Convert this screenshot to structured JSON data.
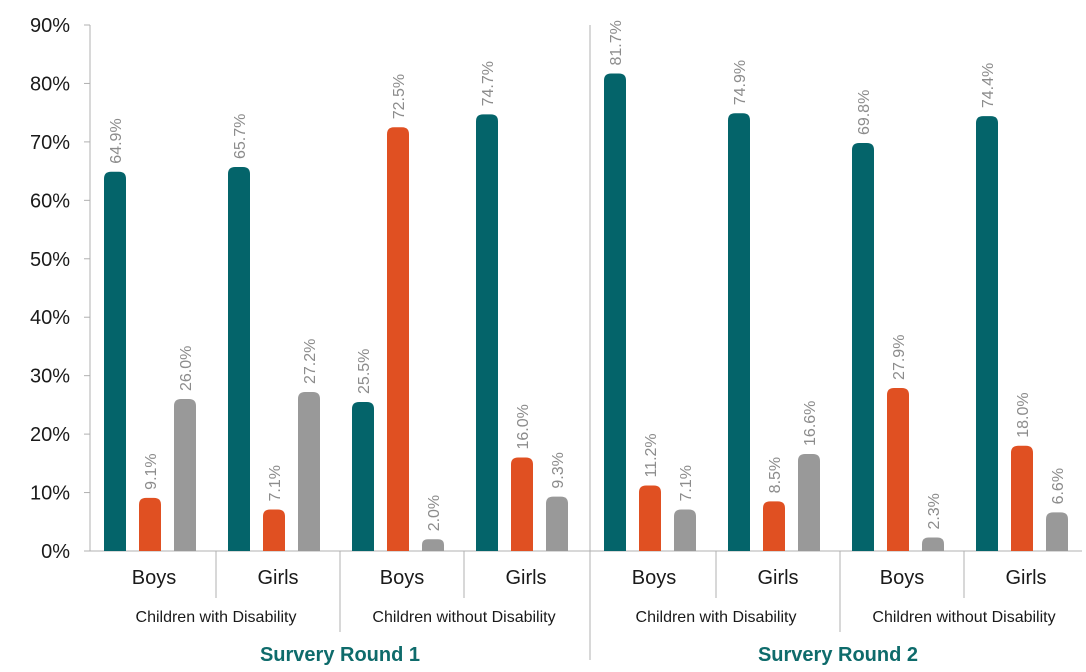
{
  "chart_data": {
    "type": "bar",
    "ylim": [
      0,
      90
    ],
    "y_ticks": [
      "0%",
      "10%",
      "20%",
      "30%",
      "40%",
      "50%",
      "60%",
      "70%",
      "80%",
      "90%"
    ],
    "colors": [
      "#04646a",
      "#e05022",
      "#999999"
    ],
    "rounds": [
      {
        "name": "Survery Round 1",
        "groups": [
          {
            "name": "Children with Disability",
            "genders": [
              {
                "name": "Boys",
                "values": [
                  64.9,
                  9.1,
                  26.0
                ],
                "labels": [
                  "64.9%",
                  "9.1%",
                  "26.0%"
                ]
              },
              {
                "name": "Girls",
                "values": [
                  65.7,
                  7.1,
                  27.2
                ],
                "labels": [
                  "65.7%",
                  "7.1%",
                  "27.2%"
                ]
              }
            ]
          },
          {
            "name": "Children without Disability",
            "genders": [
              {
                "name": "Boys",
                "values": [
                  25.5,
                  72.5,
                  2.0
                ],
                "labels": [
                  "25.5%",
                  "72.5%",
                  "2.0%"
                ]
              },
              {
                "name": "Girls",
                "values": [
                  74.7,
                  16.0,
                  9.3
                ],
                "labels": [
                  "74.7%",
                  "16.0%",
                  "9.3%"
                ]
              }
            ]
          }
        ]
      },
      {
        "name": "Survery Round 2",
        "groups": [
          {
            "name": "Children with Disability",
            "genders": [
              {
                "name": "Boys",
                "values": [
                  81.7,
                  11.2,
                  7.1
                ],
                "labels": [
                  "81.7%",
                  "11.2%",
                  "7.1%"
                ]
              },
              {
                "name": "Girls",
                "values": [
                  74.9,
                  8.5,
                  16.6
                ],
                "labels": [
                  "74.9%",
                  "8.5%",
                  "16.6%"
                ]
              }
            ]
          },
          {
            "name": "Children without Disability",
            "genders": [
              {
                "name": "Boys",
                "values": [
                  69.8,
                  27.9,
                  2.3
                ],
                "labels": [
                  "69.8%",
                  "27.9%",
                  "2.3%"
                ]
              },
              {
                "name": "Girls",
                "values": [
                  74.4,
                  18.0,
                  6.6
                ],
                "labels": [
                  "74.4%",
                  "18.0%",
                  "6.6%"
                ]
              }
            ]
          }
        ]
      }
    ]
  }
}
